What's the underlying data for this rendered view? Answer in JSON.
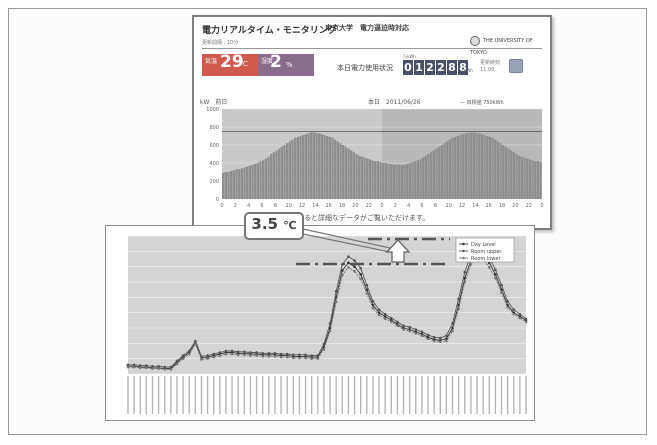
{
  "monitor": {
    "title": "電力リアルタイム・モニタリング",
    "org": "東京大学　電力逼迫時対応",
    "subtitle": "更新間隔 : 10分",
    "logo_text": "THE UNIVERSITY OF TOKYO",
    "temperature": {
      "label": "気温",
      "value": "29",
      "unit": "℃"
    },
    "humidity": {
      "label": "湿度",
      "value": "2",
      "unit": "%"
    },
    "today_label": "本日電力使用状況",
    "counter_unit": "万kWh",
    "counter_digits": [
      "0",
      "1",
      "2",
      "2",
      "8",
      "8"
    ],
    "kwh_unit": "kWh",
    "update_time": [
      "更新時刻",
      "11:00"
    ],
    "plot_header_left": "kW　前日",
    "plot_header_mid": "本日　2011/06/26",
    "plot_header_right": "― 目標値 750kWh",
    "y_ticks": [
      "1000",
      "800",
      "600",
      "400",
      "200",
      "0"
    ],
    "x_ticks": [
      "0",
      "2",
      "4",
      "6",
      "8",
      "10",
      "12",
      "14",
      "16",
      "18",
      "20",
      "22",
      "0",
      "2",
      "4",
      "6",
      "8",
      "10",
      "12",
      "14",
      "16",
      "18",
      "20",
      "22",
      "0"
    ],
    "note": "クすると詳細なデータがご覧いただけます。"
  },
  "callout": {
    "value": "3.5",
    "unit": "℃"
  },
  "chart2": {
    "legend": [
      "Day Level",
      "Room upper",
      "Room lower"
    ],
    "colors": [
      "#333333",
      "#555555",
      "#777777"
    ]
  },
  "chart_data": [
    {
      "type": "bar",
      "title": "",
      "xlabel": "",
      "ylabel": "kW",
      "ylim": [
        0,
        1000
      ],
      "target_line": 750,
      "values": [
        290,
        300,
        300,
        310,
        320,
        330,
        330,
        340,
        350,
        360,
        370,
        380,
        390,
        400,
        420,
        430,
        450,
        470,
        500,
        520,
        540,
        560,
        580,
        600,
        620,
        640,
        660,
        680,
        690,
        700,
        710,
        720,
        730,
        740,
        740,
        735,
        730,
        720,
        710,
        700,
        690,
        680,
        660,
        640,
        620,
        600,
        580,
        560,
        540,
        520,
        500,
        480,
        470,
        460,
        450,
        440,
        430,
        420,
        420,
        410,
        400,
        400,
        390,
        390,
        380,
        380,
        380,
        380,
        380,
        390,
        400,
        410,
        420,
        430,
        440,
        460,
        480,
        500,
        520,
        540,
        560,
        580,
        600,
        620,
        640,
        660,
        680,
        690,
        700,
        710,
        720,
        730,
        735,
        740,
        740,
        735,
        730,
        720,
        710,
        700,
        690,
        680,
        660,
        640,
        620,
        600,
        580,
        560,
        540,
        520,
        500,
        480,
        470,
        460,
        450,
        440,
        430,
        420,
        420,
        410
      ],
      "grid": true
    },
    {
      "type": "line",
      "title": "",
      "xlabel": "",
      "ylabel": "",
      "ylim": [
        24,
        42
      ],
      "series": [
        {
          "name": "Day Level",
          "values": [
            25.0,
            25.0,
            24.9,
            24.9,
            24.8,
            24.8,
            24.7,
            24.7,
            25.5,
            26.2,
            26.8,
            28.1,
            26.1,
            26.2,
            26.4,
            26.6,
            26.8,
            26.8,
            26.7,
            26.7,
            26.6,
            26.6,
            26.5,
            26.5,
            26.5,
            26.4,
            26.4,
            26.3,
            26.3,
            26.3,
            26.2,
            26.2,
            27.5,
            30.0,
            34.0,
            37.5,
            38.5,
            38.0,
            37.0,
            35.0,
            33.0,
            32.0,
            31.5,
            31.0,
            30.5,
            30.0,
            29.8,
            29.5,
            29.2,
            28.8,
            28.5,
            28.4,
            28.6,
            30.0,
            33.0,
            36.5,
            38.8,
            39.8,
            39.5,
            38.5,
            37.0,
            35.0,
            33.0,
            32.0,
            31.5,
            31.0
          ]
        },
        {
          "name": "Room upper",
          "values": [
            25.2,
            25.2,
            25.1,
            25.1,
            25.0,
            25.0,
            24.9,
            24.9,
            25.7,
            26.4,
            27.0,
            28.3,
            26.3,
            26.4,
            26.6,
            26.8,
            27.0,
            27.0,
            26.9,
            26.9,
            26.8,
            26.8,
            26.7,
            26.7,
            26.7,
            26.6,
            26.6,
            26.5,
            26.5,
            26.5,
            26.4,
            26.4,
            27.9,
            30.6,
            34.8,
            38.3,
            39.3,
            38.8,
            37.8,
            35.6,
            33.5,
            32.4,
            31.8,
            31.3,
            30.8,
            30.3,
            30.1,
            29.8,
            29.5,
            29.1,
            28.8,
            28.7,
            29.0,
            30.6,
            33.8,
            37.3,
            39.6,
            40.6,
            40.3,
            39.2,
            37.6,
            35.6,
            33.5,
            32.4,
            31.8,
            31.2
          ]
        },
        {
          "name": "Room lower",
          "values": [
            24.9,
            24.9,
            24.8,
            24.8,
            24.7,
            24.7,
            24.6,
            24.6,
            25.3,
            26.0,
            26.6,
            27.9,
            25.9,
            26.0,
            26.2,
            26.4,
            26.6,
            26.6,
            26.5,
            26.5,
            26.4,
            26.4,
            26.3,
            26.3,
            26.3,
            26.2,
            26.2,
            26.1,
            26.1,
            26.1,
            26.0,
            26.0,
            27.2,
            29.6,
            33.4,
            36.9,
            37.9,
            37.4,
            36.4,
            34.5,
            32.6,
            31.7,
            31.2,
            30.8,
            30.3,
            29.8,
            29.6,
            29.3,
            29.0,
            28.6,
            28.3,
            28.2,
            28.3,
            29.6,
            32.5,
            36.0,
            38.3,
            39.2,
            38.9,
            37.9,
            36.5,
            34.6,
            32.7,
            31.8,
            31.3,
            30.8
          ]
        }
      ],
      "grid": true
    }
  ]
}
